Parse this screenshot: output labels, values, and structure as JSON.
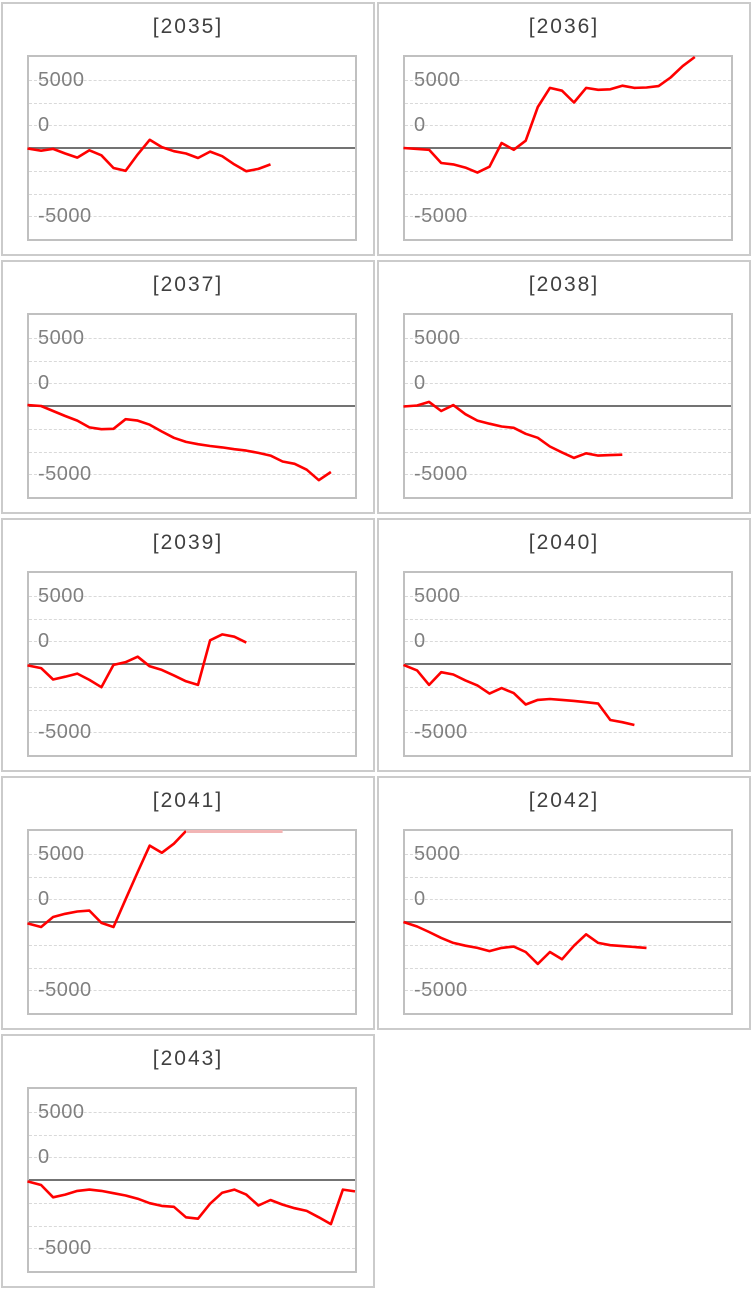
{
  "page": {
    "background": "#ffffff",
    "description": "Grid of nine small line charts (panel chart), two columns by five rows, last cell empty"
  },
  "colors": {
    "series": "#ff0000",
    "series_clipped": "#f2b5b5",
    "zero_line": "#737373",
    "gridline": "#d9d9d9",
    "plot_border": "#c0c0c0",
    "panel_border": "#cbcbcb",
    "title_text": "#404040",
    "axis_text": "#808080"
  },
  "chart_data": {
    "type": "line",
    "layout": "small-multiples 2 columns x 5 rows, ninth panel alone in last row",
    "series_color": "#ff0000",
    "series_clipped_color": "#f2b5b5",
    "x_axis": {
      "labels_shown": false,
      "slots": 28
    },
    "y_axis": {
      "tick_labels": [
        "5000",
        "0",
        "-5000"
      ],
      "ylim": [
        -10000,
        10000
      ],
      "gridline_interval": 2500,
      "gridlines_dashed": true,
      "zero_line_solid": true
    },
    "panels": [
      {
        "title": "[2035]",
        "values": [
          -50,
          -300,
          -100,
          -600,
          -1050,
          -250,
          -800,
          -2200,
          -2500,
          -700,
          900,
          100,
          -350,
          -600,
          -1100,
          -400,
          -900,
          -1800,
          -2550,
          -2300,
          -1800
        ]
      },
      {
        "title": "[2036]",
        "values": [
          0,
          -100,
          -200,
          -1650,
          -1800,
          -2150,
          -2700,
          -2050,
          550,
          -200,
          800,
          4500,
          6600,
          6300,
          5000,
          6600,
          6400,
          6450,
          6850,
          6600,
          6650,
          6800,
          7750,
          9000,
          10000
        ]
      },
      {
        "title": "[2037]",
        "values": [
          100,
          0,
          -550,
          -1100,
          -1600,
          -2350,
          -2550,
          -2500,
          -1450,
          -1600,
          -2050,
          -2800,
          -3500,
          -3950,
          -4200,
          -4400,
          -4550,
          -4750,
          -4900,
          -5150,
          -5450,
          -6100,
          -6350,
          -7000,
          -8150,
          -7250
        ]
      },
      {
        "title": "[2038]",
        "values": [
          -50,
          50,
          450,
          -550,
          100,
          -900,
          -1600,
          -1950,
          -2250,
          -2400,
          -3050,
          -3500,
          -4450,
          -5100,
          -5700,
          -5200,
          -5450,
          -5400,
          -5350
        ]
      },
      {
        "title": "[2039]",
        "values": [
          -150,
          -450,
          -1700,
          -1400,
          -1050,
          -1750,
          -2550,
          -100,
          200,
          800,
          -250,
          -650,
          -1250,
          -1900,
          -2300,
          2600,
          3250,
          3000,
          2350
        ]
      },
      {
        "title": "[2040]",
        "values": [
          -100,
          -700,
          -2300,
          -900,
          -1150,
          -1800,
          -2350,
          -3250,
          -2650,
          -3200,
          -4450,
          -3950,
          -3850,
          -3950,
          -4050,
          -4200,
          -4350,
          -6150,
          -6400,
          -6700
        ]
      },
      {
        "title": "[2041]",
        "values": [
          -150,
          -550,
          550,
          900,
          1150,
          1250,
          -100,
          -550,
          2500,
          5500,
          8400,
          7600,
          8600,
          10000,
          10000,
          10000,
          10000,
          10000,
          10000,
          10000,
          10000,
          10000
        ],
        "clipped_from_index": 13
      },
      {
        "title": "[2042]",
        "values": [
          0,
          -500,
          -1100,
          -1750,
          -2300,
          -2600,
          -2850,
          -3200,
          -2850,
          -2700,
          -3300,
          -4600,
          -3300,
          -4100,
          -2600,
          -1350,
          -2300,
          -2550,
          -2650,
          -2750,
          -2850
        ]
      },
      {
        "title": "[2043]",
        "values": [
          -150,
          -550,
          -1900,
          -1600,
          -1200,
          -1050,
          -1200,
          -1450,
          -1700,
          -2050,
          -2550,
          -2850,
          -2950,
          -4100,
          -4250,
          -2600,
          -1400,
          -1050,
          -1600,
          -2800,
          -2200,
          -2700,
          -3100,
          -3400,
          -4100,
          -4850,
          -1050,
          -1250
        ]
      }
    ]
  }
}
